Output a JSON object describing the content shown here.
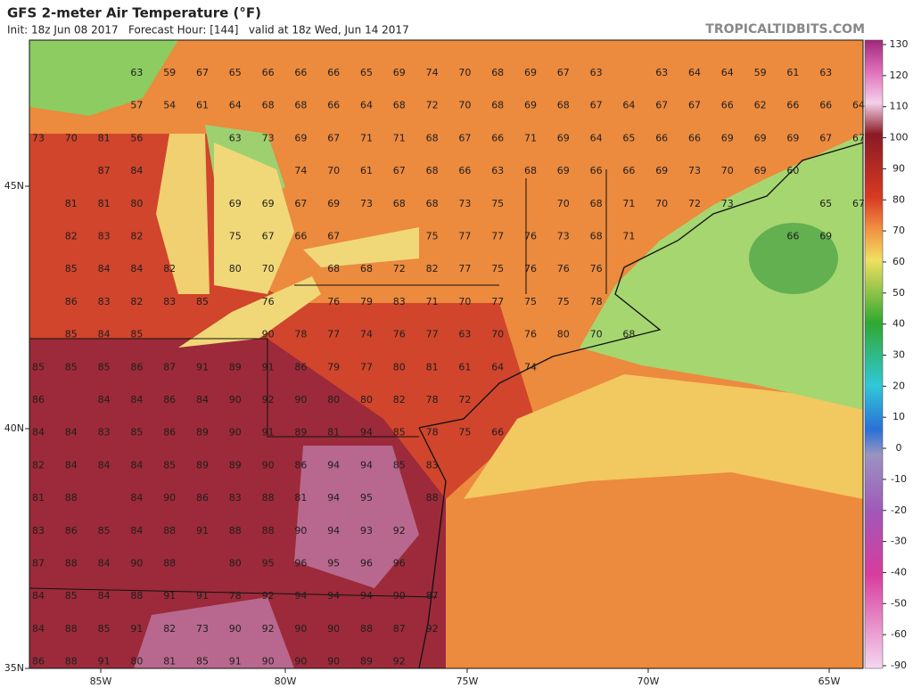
{
  "header": {
    "title": "GFS 2-meter Air Temperature (°F)",
    "subtitle": "Init: 18z Jun 08 2017   Forecast Hour: [144]   valid at 18z Wed, Jun 14 2017",
    "source": "TROPICALTIDBITS.COM"
  },
  "colorbar": {
    "ticks": [
      130,
      120,
      110,
      100,
      90,
      80,
      70,
      60,
      50,
      40,
      30,
      20,
      10,
      0,
      -10,
      -20,
      -30,
      -40,
      -50,
      -60,
      -90
    ]
  },
  "longitude_labels": [
    "85W",
    "80W",
    "75W",
    "70W",
    "65W"
  ],
  "latitude_labels": [
    "45N",
    "40N",
    "35N"
  ],
  "temperature_rows": [
    [
      null,
      null,
      null,
      63,
      59,
      67,
      65,
      66,
      66,
      66,
      65,
      69,
      74,
      70,
      68,
      69,
      67,
      63,
      null,
      63,
      64,
      64,
      59,
      61,
      63
    ],
    [
      null,
      null,
      null,
      57,
      54,
      61,
      64,
      68,
      68,
      66,
      64,
      68,
      72,
      70,
      68,
      69,
      68,
      67,
      64,
      67,
      67,
      66,
      62,
      66,
      66,
      64
    ],
    [
      73,
      70,
      81,
      56,
      null,
      null,
      63,
      73,
      69,
      67,
      71,
      71,
      68,
      67,
      66,
      71,
      69,
      64,
      65,
      66,
      66,
      69,
      69,
      69,
      67,
      67
    ],
    [
      null,
      null,
      87,
      84,
      null,
      null,
      null,
      null,
      74,
      70,
      61,
      67,
      68,
      66,
      63,
      68,
      69,
      66,
      66,
      69,
      73,
      70,
      69,
      60
    ],
    [
      null,
      81,
      81,
      80,
      null,
      null,
      69,
      69,
      67,
      69,
      73,
      68,
      68,
      73,
      75,
      null,
      70,
      68,
      71,
      70,
      72,
      73,
      null,
      null,
      65,
      67
    ],
    [
      null,
      82,
      83,
      82,
      null,
      null,
      75,
      67,
      66,
      67,
      null,
      null,
      75,
      77,
      77,
      76,
      73,
      68,
      71,
      null,
      null,
      null,
      null,
      66,
      69
    ],
    [
      null,
      85,
      84,
      84,
      82,
      null,
      80,
      70,
      null,
      68,
      68,
      72,
      82,
      77,
      75,
      76,
      76,
      76
    ],
    [
      null,
      86,
      83,
      82,
      83,
      85,
      null,
      76,
      null,
      76,
      79,
      83,
      71,
      70,
      77,
      75,
      75,
      78
    ],
    [
      null,
      85,
      84,
      85,
      null,
      null,
      null,
      90,
      78,
      77,
      74,
      76,
      77,
      63,
      70,
      76,
      80,
      70,
      68
    ],
    [
      85,
      85,
      85,
      86,
      87,
      91,
      89,
      91,
      86,
      79,
      77,
      80,
      81,
      61,
      64,
      74
    ],
    [
      86,
      null,
      84,
      84,
      86,
      84,
      90,
      92,
      90,
      80,
      80,
      82,
      78,
      72
    ],
    [
      84,
      84,
      83,
      85,
      86,
      89,
      90,
      91,
      89,
      81,
      94,
      85,
      78,
      75,
      66
    ],
    [
      82,
      84,
      84,
      84,
      85,
      89,
      89,
      90,
      86,
      94,
      94,
      85,
      83
    ],
    [
      81,
      88,
      null,
      84,
      90,
      86,
      83,
      88,
      81,
      94,
      95,
      null,
      88
    ],
    [
      83,
      86,
      85,
      84,
      88,
      91,
      88,
      88,
      90,
      94,
      93,
      92
    ],
    [
      87,
      88,
      84,
      90,
      88,
      null,
      80,
      95,
      96,
      95,
      96,
      96
    ],
    [
      84,
      85,
      84,
      88,
      91,
      91,
      78,
      92,
      94,
      94,
      94,
      90,
      87
    ],
    [
      84,
      88,
      85,
      91,
      82,
      73,
      90,
      92,
      90,
      90,
      88,
      87,
      92
    ],
    [
      86,
      88,
      91,
      80,
      81,
      85,
      91,
      90,
      90,
      90,
      89,
      92
    ]
  ]
}
